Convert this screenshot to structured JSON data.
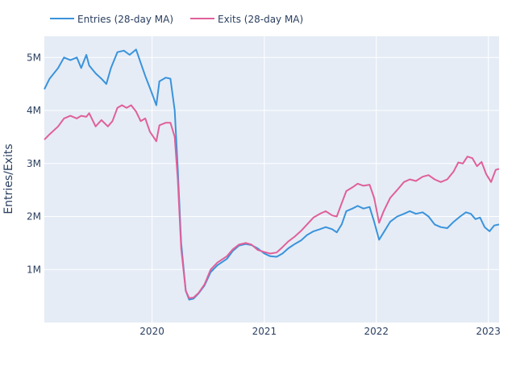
{
  "chart_data": {
    "type": "line",
    "title": "",
    "xlabel": "",
    "ylabel": "Entries/Exits",
    "x_range": [
      "2019-01-15",
      "2023-02-05"
    ],
    "xlim_note": "",
    "ylim": [
      0,
      5400000
    ],
    "x_ticks": [
      {
        "label": "2020",
        "date": "2020-01-01"
      },
      {
        "label": "2021",
        "date": "2021-01-01"
      },
      {
        "label": "2022",
        "date": "2022-01-01"
      },
      {
        "label": "2023",
        "date": "2023-01-01"
      }
    ],
    "y_ticks": [
      {
        "label": "1M",
        "value": 1000000
      },
      {
        "label": "2M",
        "value": 2000000
      },
      {
        "label": "3M",
        "value": 3000000
      },
      {
        "label": "4M",
        "value": 4000000
      },
      {
        "label": "5M",
        "value": 5000000
      }
    ],
    "grid": true,
    "legend_position": "top-left",
    "series": [
      {
        "name": "Entries (28-day MA)",
        "color": "#3a93db",
        "points": [
          [
            "2019-01-15",
            4400000
          ],
          [
            "2019-02-01",
            4600000
          ],
          [
            "2019-03-01",
            4800000
          ],
          [
            "2019-03-20",
            5000000
          ],
          [
            "2019-04-10",
            4950000
          ],
          [
            "2019-05-01",
            5000000
          ],
          [
            "2019-05-15",
            4800000
          ],
          [
            "2019-06-01",
            5050000
          ],
          [
            "2019-06-10",
            4850000
          ],
          [
            "2019-07-01",
            4700000
          ],
          [
            "2019-07-20",
            4600000
          ],
          [
            "2019-08-05",
            4500000
          ],
          [
            "2019-08-20",
            4800000
          ],
          [
            "2019-09-10",
            5100000
          ],
          [
            "2019-10-01",
            5130000
          ],
          [
            "2019-10-20",
            5050000
          ],
          [
            "2019-11-10",
            5150000
          ],
          [
            "2019-11-25",
            4900000
          ],
          [
            "2019-12-10",
            4650000
          ],
          [
            "2019-12-30",
            4350000
          ],
          [
            "2020-01-15",
            4100000
          ],
          [
            "2020-01-25",
            4550000
          ],
          [
            "2020-02-15",
            4620000
          ],
          [
            "2020-03-01",
            4600000
          ],
          [
            "2020-03-15",
            4000000
          ],
          [
            "2020-03-25",
            2900000
          ],
          [
            "2020-04-05",
            1500000
          ],
          [
            "2020-04-20",
            600000
          ],
          [
            "2020-05-01",
            430000
          ],
          [
            "2020-05-15",
            450000
          ],
          [
            "2020-06-01",
            550000
          ],
          [
            "2020-06-20",
            700000
          ],
          [
            "2020-07-10",
            950000
          ],
          [
            "2020-08-01",
            1080000
          ],
          [
            "2020-09-01",
            1200000
          ],
          [
            "2020-09-20",
            1350000
          ],
          [
            "2020-10-10",
            1450000
          ],
          [
            "2020-11-01",
            1480000
          ],
          [
            "2020-11-20",
            1460000
          ],
          [
            "2020-12-10",
            1400000
          ],
          [
            "2021-01-01",
            1300000
          ],
          [
            "2021-01-20",
            1250000
          ],
          [
            "2021-02-10",
            1240000
          ],
          [
            "2021-03-01",
            1300000
          ],
          [
            "2021-03-20",
            1400000
          ],
          [
            "2021-04-10",
            1480000
          ],
          [
            "2021-05-01",
            1550000
          ],
          [
            "2021-05-20",
            1650000
          ],
          [
            "2021-06-10",
            1720000
          ],
          [
            "2021-07-01",
            1760000
          ],
          [
            "2021-07-20",
            1800000
          ],
          [
            "2021-08-10",
            1760000
          ],
          [
            "2021-08-25",
            1700000
          ],
          [
            "2021-09-10",
            1850000
          ],
          [
            "2021-09-25",
            2100000
          ],
          [
            "2021-10-15",
            2150000
          ],
          [
            "2021-11-01",
            2200000
          ],
          [
            "2021-11-20",
            2150000
          ],
          [
            "2021-12-10",
            2180000
          ],
          [
            "2021-12-25",
            1900000
          ],
          [
            "2022-01-10",
            1560000
          ],
          [
            "2022-01-25",
            1700000
          ],
          [
            "2022-02-15",
            1900000
          ],
          [
            "2022-03-10",
            2000000
          ],
          [
            "2022-04-01",
            2050000
          ],
          [
            "2022-04-20",
            2100000
          ],
          [
            "2022-05-10",
            2050000
          ],
          [
            "2022-06-01",
            2080000
          ],
          [
            "2022-06-20",
            2000000
          ],
          [
            "2022-07-10",
            1850000
          ],
          [
            "2022-07-30",
            1800000
          ],
          [
            "2022-08-20",
            1780000
          ],
          [
            "2022-09-10",
            1900000
          ],
          [
            "2022-10-01",
            2000000
          ],
          [
            "2022-10-20",
            2080000
          ],
          [
            "2022-11-05",
            2050000
          ],
          [
            "2022-11-20",
            1950000
          ],
          [
            "2022-12-05",
            1980000
          ],
          [
            "2022-12-20",
            1800000
          ],
          [
            "2023-01-05",
            1720000
          ],
          [
            "2023-01-20",
            1830000
          ],
          [
            "2023-02-05",
            1850000
          ]
        ]
      },
      {
        "name": "Exits (28-day MA)",
        "color": "#e0609a",
        "points": [
          [
            "2019-01-15",
            3450000
          ],
          [
            "2019-02-01",
            3550000
          ],
          [
            "2019-03-01",
            3700000
          ],
          [
            "2019-03-20",
            3850000
          ],
          [
            "2019-04-10",
            3900000
          ],
          [
            "2019-05-01",
            3850000
          ],
          [
            "2019-05-15",
            3900000
          ],
          [
            "2019-06-01",
            3880000
          ],
          [
            "2019-06-10",
            3950000
          ],
          [
            "2019-07-01",
            3700000
          ],
          [
            "2019-07-20",
            3820000
          ],
          [
            "2019-08-10",
            3700000
          ],
          [
            "2019-08-25",
            3800000
          ],
          [
            "2019-09-10",
            4050000
          ],
          [
            "2019-09-25",
            4100000
          ],
          [
            "2019-10-10",
            4050000
          ],
          [
            "2019-10-25",
            4100000
          ],
          [
            "2019-11-10",
            3980000
          ],
          [
            "2019-11-25",
            3800000
          ],
          [
            "2019-12-10",
            3850000
          ],
          [
            "2019-12-25",
            3600000
          ],
          [
            "2020-01-15",
            3420000
          ],
          [
            "2020-01-25",
            3720000
          ],
          [
            "2020-02-15",
            3770000
          ],
          [
            "2020-03-01",
            3770000
          ],
          [
            "2020-03-15",
            3500000
          ],
          [
            "2020-03-25",
            2700000
          ],
          [
            "2020-04-05",
            1400000
          ],
          [
            "2020-04-20",
            600000
          ],
          [
            "2020-05-01",
            460000
          ],
          [
            "2020-05-15",
            470000
          ],
          [
            "2020-06-01",
            560000
          ],
          [
            "2020-06-20",
            720000
          ],
          [
            "2020-07-10",
            1000000
          ],
          [
            "2020-08-01",
            1130000
          ],
          [
            "2020-09-01",
            1250000
          ],
          [
            "2020-09-20",
            1380000
          ],
          [
            "2020-10-10",
            1470000
          ],
          [
            "2020-11-01",
            1500000
          ],
          [
            "2020-11-20",
            1470000
          ],
          [
            "2020-12-10",
            1370000
          ],
          [
            "2021-01-01",
            1330000
          ],
          [
            "2021-01-20",
            1300000
          ],
          [
            "2021-02-10",
            1320000
          ],
          [
            "2021-03-01",
            1420000
          ],
          [
            "2021-03-20",
            1530000
          ],
          [
            "2021-04-10",
            1620000
          ],
          [
            "2021-05-01",
            1730000
          ],
          [
            "2021-05-20",
            1850000
          ],
          [
            "2021-06-10",
            1980000
          ],
          [
            "2021-07-01",
            2050000
          ],
          [
            "2021-07-20",
            2100000
          ],
          [
            "2021-08-10",
            2020000
          ],
          [
            "2021-08-25",
            2000000
          ],
          [
            "2021-09-10",
            2250000
          ],
          [
            "2021-09-25",
            2480000
          ],
          [
            "2021-10-15",
            2550000
          ],
          [
            "2021-11-01",
            2620000
          ],
          [
            "2021-11-20",
            2580000
          ],
          [
            "2021-12-10",
            2600000
          ],
          [
            "2021-12-25",
            2350000
          ],
          [
            "2022-01-10",
            1880000
          ],
          [
            "2022-01-25",
            2100000
          ],
          [
            "2022-02-15",
            2350000
          ],
          [
            "2022-03-10",
            2500000
          ],
          [
            "2022-04-01",
            2650000
          ],
          [
            "2022-04-20",
            2700000
          ],
          [
            "2022-05-10",
            2670000
          ],
          [
            "2022-06-01",
            2750000
          ],
          [
            "2022-06-20",
            2780000
          ],
          [
            "2022-07-10",
            2700000
          ],
          [
            "2022-07-30",
            2650000
          ],
          [
            "2022-08-20",
            2700000
          ],
          [
            "2022-09-10",
            2850000
          ],
          [
            "2022-09-25",
            3020000
          ],
          [
            "2022-10-10",
            3000000
          ],
          [
            "2022-10-25",
            3130000
          ],
          [
            "2022-11-10",
            3100000
          ],
          [
            "2022-11-25",
            2950000
          ],
          [
            "2022-12-10",
            3030000
          ],
          [
            "2022-12-25",
            2800000
          ],
          [
            "2023-01-10",
            2650000
          ],
          [
            "2023-01-25",
            2880000
          ],
          [
            "2023-02-05",
            2900000
          ]
        ]
      }
    ]
  }
}
